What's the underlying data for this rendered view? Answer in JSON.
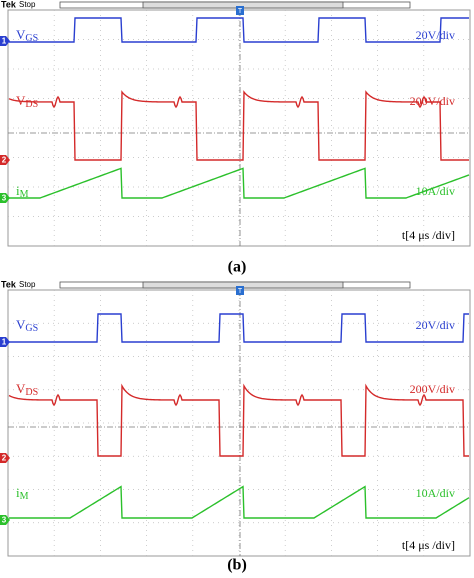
{
  "panels": [
    {
      "caption": "(a)",
      "header": {
        "brand": "Tek",
        "status": "Stop"
      },
      "trigger_marker": "T",
      "channels": [
        {
          "marker": "1",
          "label": "V",
          "subscript": "GS",
          "scale": "20V/div"
        },
        {
          "marker": "2",
          "label": "V",
          "subscript": "DS",
          "scale": "200V/div"
        },
        {
          "marker": "3",
          "label": "i",
          "subscript": "M",
          "scale": "10A/div"
        }
      ],
      "timebase": "t[4 μs /div]"
    },
    {
      "caption": "(b)",
      "header": {
        "brand": "Tek",
        "status": "Stop"
      },
      "trigger_marker": "T",
      "channels": [
        {
          "marker": "1",
          "label": "V",
          "subscript": "GS",
          "scale": "20V/div"
        },
        {
          "marker": "2",
          "label": "V",
          "subscript": "DS",
          "scale": "200V/div"
        },
        {
          "marker": "3",
          "label": "i",
          "subscript": "M",
          "scale": "10A/div"
        }
      ],
      "timebase": "t[4 μs /div]"
    }
  ]
}
